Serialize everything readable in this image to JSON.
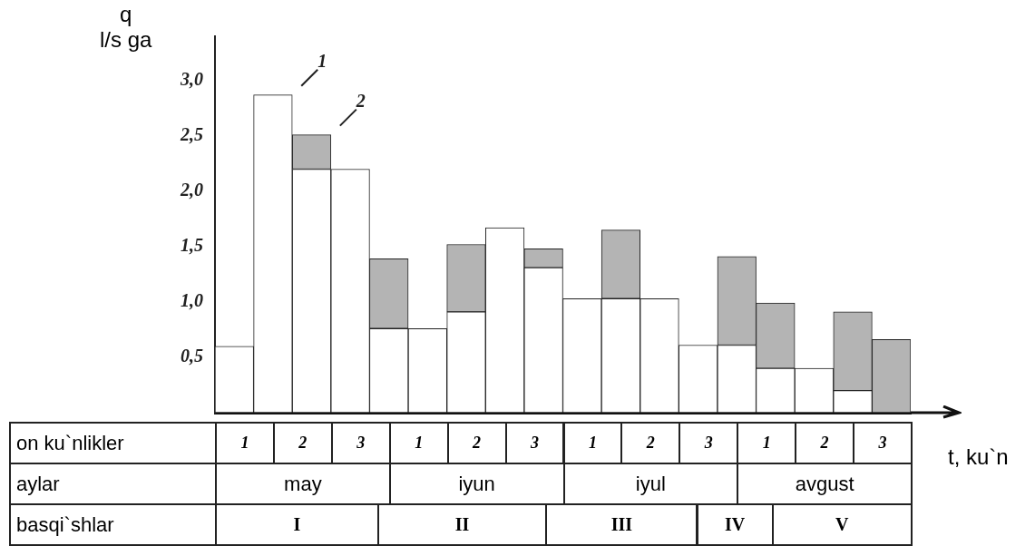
{
  "chart_data": {
    "type": "bar",
    "stacked": true,
    "ylabel": "q\nl/s ga",
    "xlabel": "t, ku`n",
    "categories": [
      null,
      null,
      null,
      null,
      null,
      null,
      null,
      null,
      null,
      null,
      null,
      null,
      null,
      null,
      null,
      null,
      null,
      null
    ],
    "series": [
      {
        "name": "1",
        "color": "#ffffff",
        "values": [
          0.6,
          2.87,
          2.2,
          2.2,
          0.76,
          0.76,
          0.91,
          1.67,
          1.31,
          1.03,
          1.03,
          1.03,
          0.61,
          0.61,
          0.4,
          0.4,
          0.2,
          null
        ]
      },
      {
        "name": "2",
        "color": "#b4b4b4",
        "values": [
          null,
          null,
          0.31,
          null,
          0.63,
          null,
          0.61,
          null,
          0.17,
          null,
          0.62,
          null,
          null,
          0.8,
          0.59,
          null,
          0.71,
          0.66
        ]
      }
    ],
    "ylim": [
      0,
      3.4
    ],
    "yticks": [
      {
        "value": 0.5,
        "label": "0,5"
      },
      {
        "value": 1,
        "label": "1,0"
      },
      {
        "value": 1.5,
        "label": "1,5"
      },
      {
        "value": 2,
        "label": "2,0"
      },
      {
        "value": 2.5,
        "label": "2,5"
      },
      {
        "value": 3,
        "label": "3,0"
      }
    ],
    "grid": false,
    "legend": false,
    "annotations": [
      "on ku`nlikler",
      "1",
      "2",
      "3",
      "1",
      "2",
      "3",
      "1",
      "2",
      "3",
      "1",
      "2",
      "3",
      "aylar",
      "may",
      "iyun",
      "iyul",
      "avgust",
      "basqi`shlar",
      "I",
      "II",
      "III",
      "IV",
      "V"
    ]
  }
}
